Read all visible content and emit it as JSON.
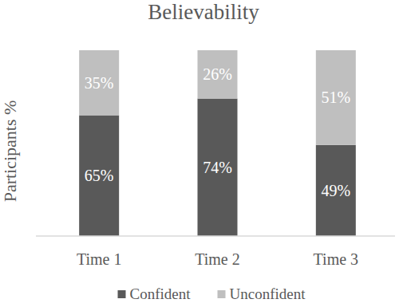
{
  "chart_data": {
    "type": "bar",
    "title": "Believability",
    "y_label": "Participants %",
    "categories": [
      "Time 1",
      "Time 2",
      "Time 3"
    ],
    "series": [
      {
        "name": "Confident",
        "color": "#595959",
        "values": [
          65,
          74,
          49
        ],
        "value_labels": [
          "65%",
          "74%",
          "49%"
        ]
      },
      {
        "name": "Unconfident",
        "color": "#bfbfbf",
        "values": [
          35,
          26,
          51
        ],
        "value_labels": [
          "35%",
          "26%",
          "51%"
        ]
      }
    ],
    "ylim": [
      0,
      100
    ],
    "stacked": true,
    "data_labels": true,
    "tick_labels": "x",
    "legend": "bottom"
  }
}
